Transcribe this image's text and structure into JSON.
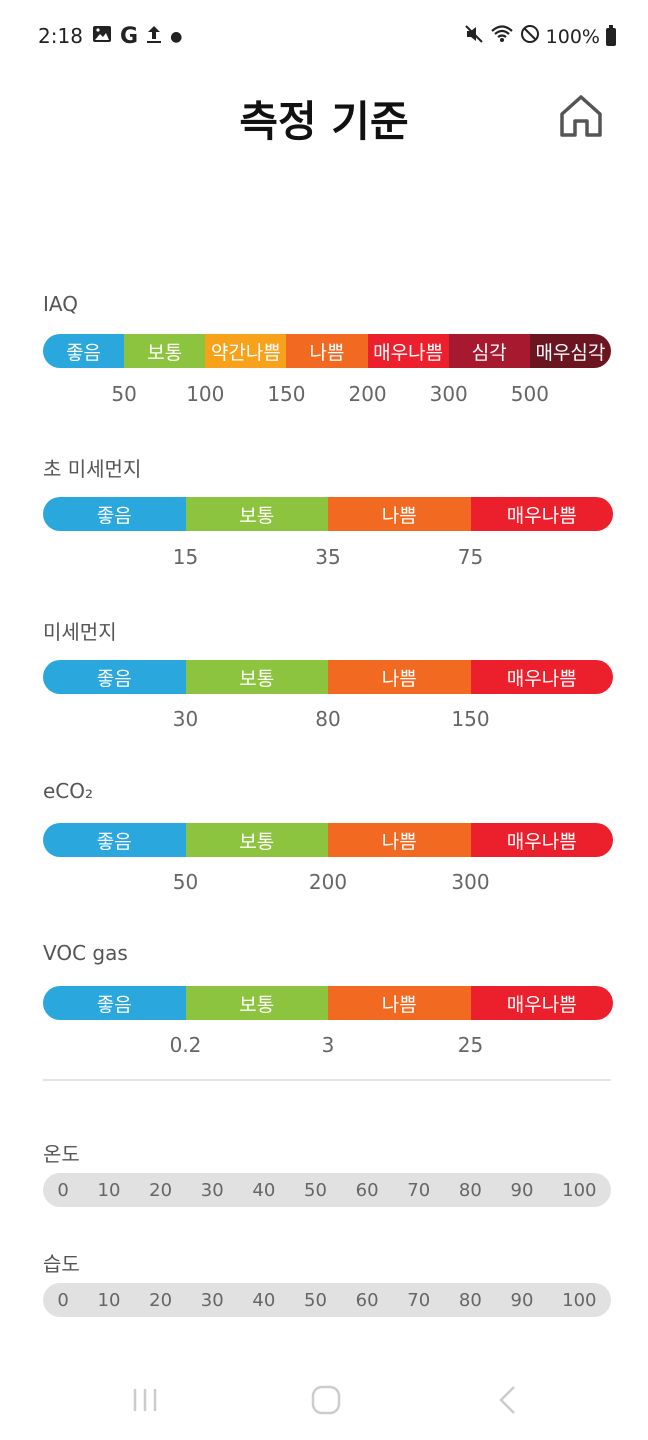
{
  "status_bar": {
    "time": "2:18",
    "battery": "100%"
  },
  "header": {
    "title": "측정 기준"
  },
  "colors": {
    "good": "#2aa7dd",
    "moderate": "#8cc43f",
    "slightly_bad": "#f8a11a",
    "bad": "#f26a22",
    "very_bad": "#ec1f2c",
    "severe": "#a6192e",
    "very_severe": "#6b1520"
  },
  "iaq": {
    "label": "IAQ",
    "segments": [
      {
        "label": "좋음",
        "color": "#2aa7dd"
      },
      {
        "label": "보통",
        "color": "#8cc43f"
      },
      {
        "label": "약간나쁨",
        "color": "#f8a11a"
      },
      {
        "label": "나쁨",
        "color": "#f26a22"
      },
      {
        "label": "매우나쁨",
        "color": "#ec1f2c"
      },
      {
        "label": "심각",
        "color": "#a6192e"
      },
      {
        "label": "매우심각",
        "color": "#6b1520"
      }
    ],
    "thresholds": [
      "50",
      "100",
      "150",
      "200",
      "300",
      "500"
    ]
  },
  "pm25": {
    "label": "초 미세먼지",
    "segments": [
      "좋음",
      "보통",
      "나쁨",
      "매우나쁨"
    ],
    "thresholds": [
      "15",
      "35",
      "75"
    ]
  },
  "pm10": {
    "label": "미세먼지",
    "segments": [
      "좋음",
      "보통",
      "나쁨",
      "매우나쁨"
    ],
    "thresholds": [
      "30",
      "80",
      "150"
    ]
  },
  "eco2": {
    "label": "eCO₂",
    "segments": [
      "좋음",
      "보통",
      "나쁨",
      "매우나쁨"
    ],
    "thresholds": [
      "50",
      "200",
      "300"
    ]
  },
  "voc": {
    "label": "VOC gas",
    "segments": [
      "좋음",
      "보통",
      "나쁨",
      "매우나쁨"
    ],
    "thresholds": [
      "0.2",
      "3",
      "25"
    ]
  },
  "temperature": {
    "label": "온도",
    "values": [
      "0",
      "10",
      "20",
      "30",
      "40",
      "50",
      "60",
      "70",
      "80",
      "90",
      "100"
    ]
  },
  "humidity": {
    "label": "습도",
    "values": [
      "0",
      "10",
      "20",
      "30",
      "40",
      "50",
      "60",
      "70",
      "80",
      "90",
      "100"
    ]
  }
}
